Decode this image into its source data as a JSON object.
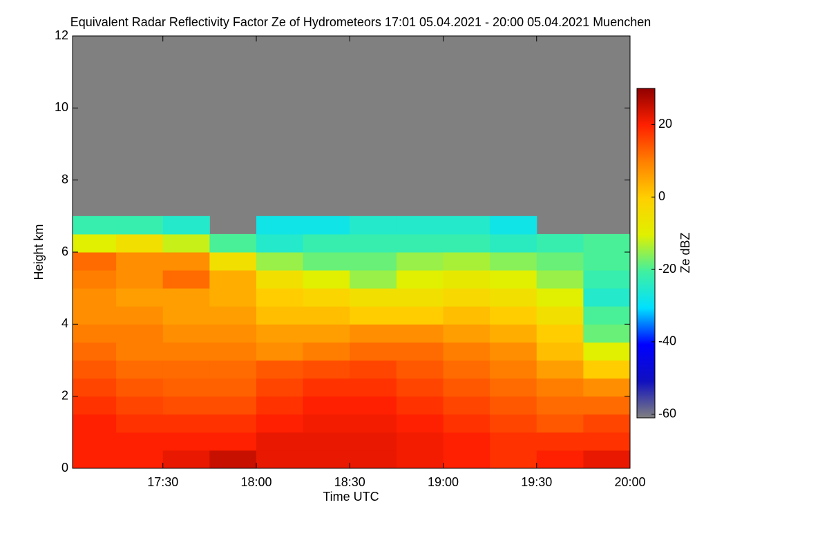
{
  "chart_data": {
    "type": "heatmap",
    "title": "Equivalent Radar Reflectivity Factor Ze of Hydrometeors   17:01 05.04.2021 - 20:00 05.04.2021 Muenchen",
    "x_label": "Time UTC",
    "y_label": "Height km",
    "colorbar_label": "Ze dBZ",
    "x": [
      1,
      15,
      30,
      45,
      60,
      75,
      90,
      105,
      120,
      135,
      150,
      165,
      180
    ],
    "y": [
      0,
      0.5,
      1,
      1.5,
      2,
      2.5,
      3,
      3.5,
      4,
      4.5,
      5,
      5.5,
      6,
      6.5,
      7
    ],
    "z": [
      [
        20,
        20,
        22,
        25,
        22,
        22,
        22,
        21,
        20,
        18,
        20,
        22
      ],
      [
        20,
        20,
        20,
        20,
        22,
        22,
        22,
        21,
        20,
        18,
        18,
        18
      ],
      [
        20,
        18,
        18,
        18,
        20,
        21,
        21,
        20,
        18,
        16,
        14,
        16
      ],
      [
        18,
        16,
        15,
        15,
        18,
        20,
        20,
        18,
        16,
        14,
        12,
        12
      ],
      [
        16,
        14,
        13,
        13,
        16,
        18,
        18,
        16,
        14,
        12,
        10,
        8
      ],
      [
        14,
        12,
        12,
        12,
        14,
        15,
        16,
        14,
        12,
        10,
        6,
        0
      ],
      [
        12,
        10,
        10,
        10,
        8,
        10,
        12,
        12,
        10,
        8,
        2,
        -10
      ],
      [
        10,
        10,
        8,
        8,
        6,
        6,
        8,
        8,
        6,
        4,
        0,
        -18
      ],
      [
        8,
        8,
        6,
        6,
        2,
        2,
        0,
        0,
        2,
        0,
        -5,
        -20
      ],
      [
        8,
        6,
        6,
        4,
        0,
        -2,
        -5,
        -5,
        -3,
        -5,
        -10,
        -25
      ],
      [
        10,
        8,
        12,
        4,
        -5,
        -10,
        -15,
        -10,
        -8,
        -10,
        -15,
        -22
      ],
      [
        12,
        8,
        8,
        -5,
        -15,
        -18,
        -18,
        -15,
        -14,
        -16,
        -18,
        -20
      ],
      [
        -10,
        -5,
        -12,
        -20,
        -25,
        -22,
        -22,
        -22,
        -22,
        -24,
        -22,
        -20
      ],
      [
        -22,
        -22,
        -25,
        null,
        -28,
        -28,
        -25,
        -25,
        -25,
        -28,
        null,
        null
      ]
    ],
    "xlim": [
      1,
      180
    ],
    "ylim": [
      0,
      12
    ],
    "zlim": [
      -61,
      30
    ],
    "xticks": [
      {
        "value": 30,
        "label": "17:30"
      },
      {
        "value": 60,
        "label": "18:00"
      },
      {
        "value": 90,
        "label": "18:30"
      },
      {
        "value": 120,
        "label": "19:00"
      },
      {
        "value": 150,
        "label": "19:30"
      },
      {
        "value": 180,
        "label": "20:00"
      }
    ],
    "yticks": [
      0,
      2,
      4,
      6,
      8,
      10,
      12
    ],
    "zticks": [
      -60,
      -40,
      -20,
      0,
      20
    ],
    "missing_color": "#808080",
    "colormap": [
      "#808080",
      "#1010c0",
      "#0000ff",
      "#00e0ff",
      "#40f0a0",
      "#e0f000",
      "#ffd000",
      "#ff8000",
      "#ff2000",
      "#900000"
    ]
  }
}
